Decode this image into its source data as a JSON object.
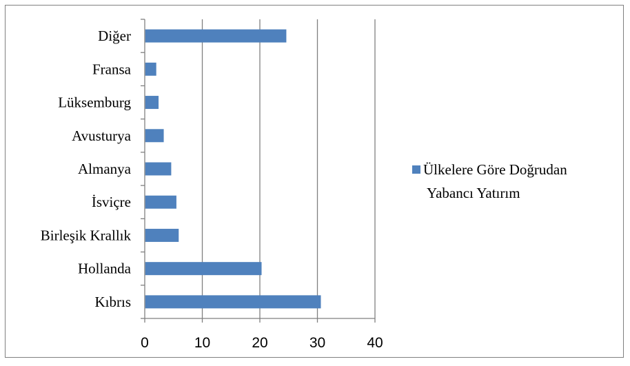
{
  "chart_data": {
    "type": "bar",
    "orientation": "horizontal",
    "categories": [
      "Kıbrıs",
      "Hollanda",
      "Birleşik Krallık",
      "İsviçre",
      "Almanya",
      "Avusturya",
      "Lüksemburg",
      "Fransa",
      "Diğer"
    ],
    "series": [
      {
        "name": "Ülkelere Göre Doğrudan Yabancı Yatırım",
        "values": [
          30.6,
          20.3,
          5.9,
          5.5,
          4.6,
          3.3,
          2.4,
          2.0,
          24.6
        ],
        "color": "#4f81bd"
      }
    ],
    "xlim": [
      0,
      40
    ],
    "xticks": [
      "0",
      "10",
      "20",
      "30",
      "40"
    ],
    "grid": "vertical",
    "legend_position": "right",
    "legend_lines": [
      "Ülkelere Göre Doğrudan",
      "Yabancı Yatırım"
    ],
    "axis_color": "#7f7f7f",
    "grid_color": "#7f7f7f"
  }
}
